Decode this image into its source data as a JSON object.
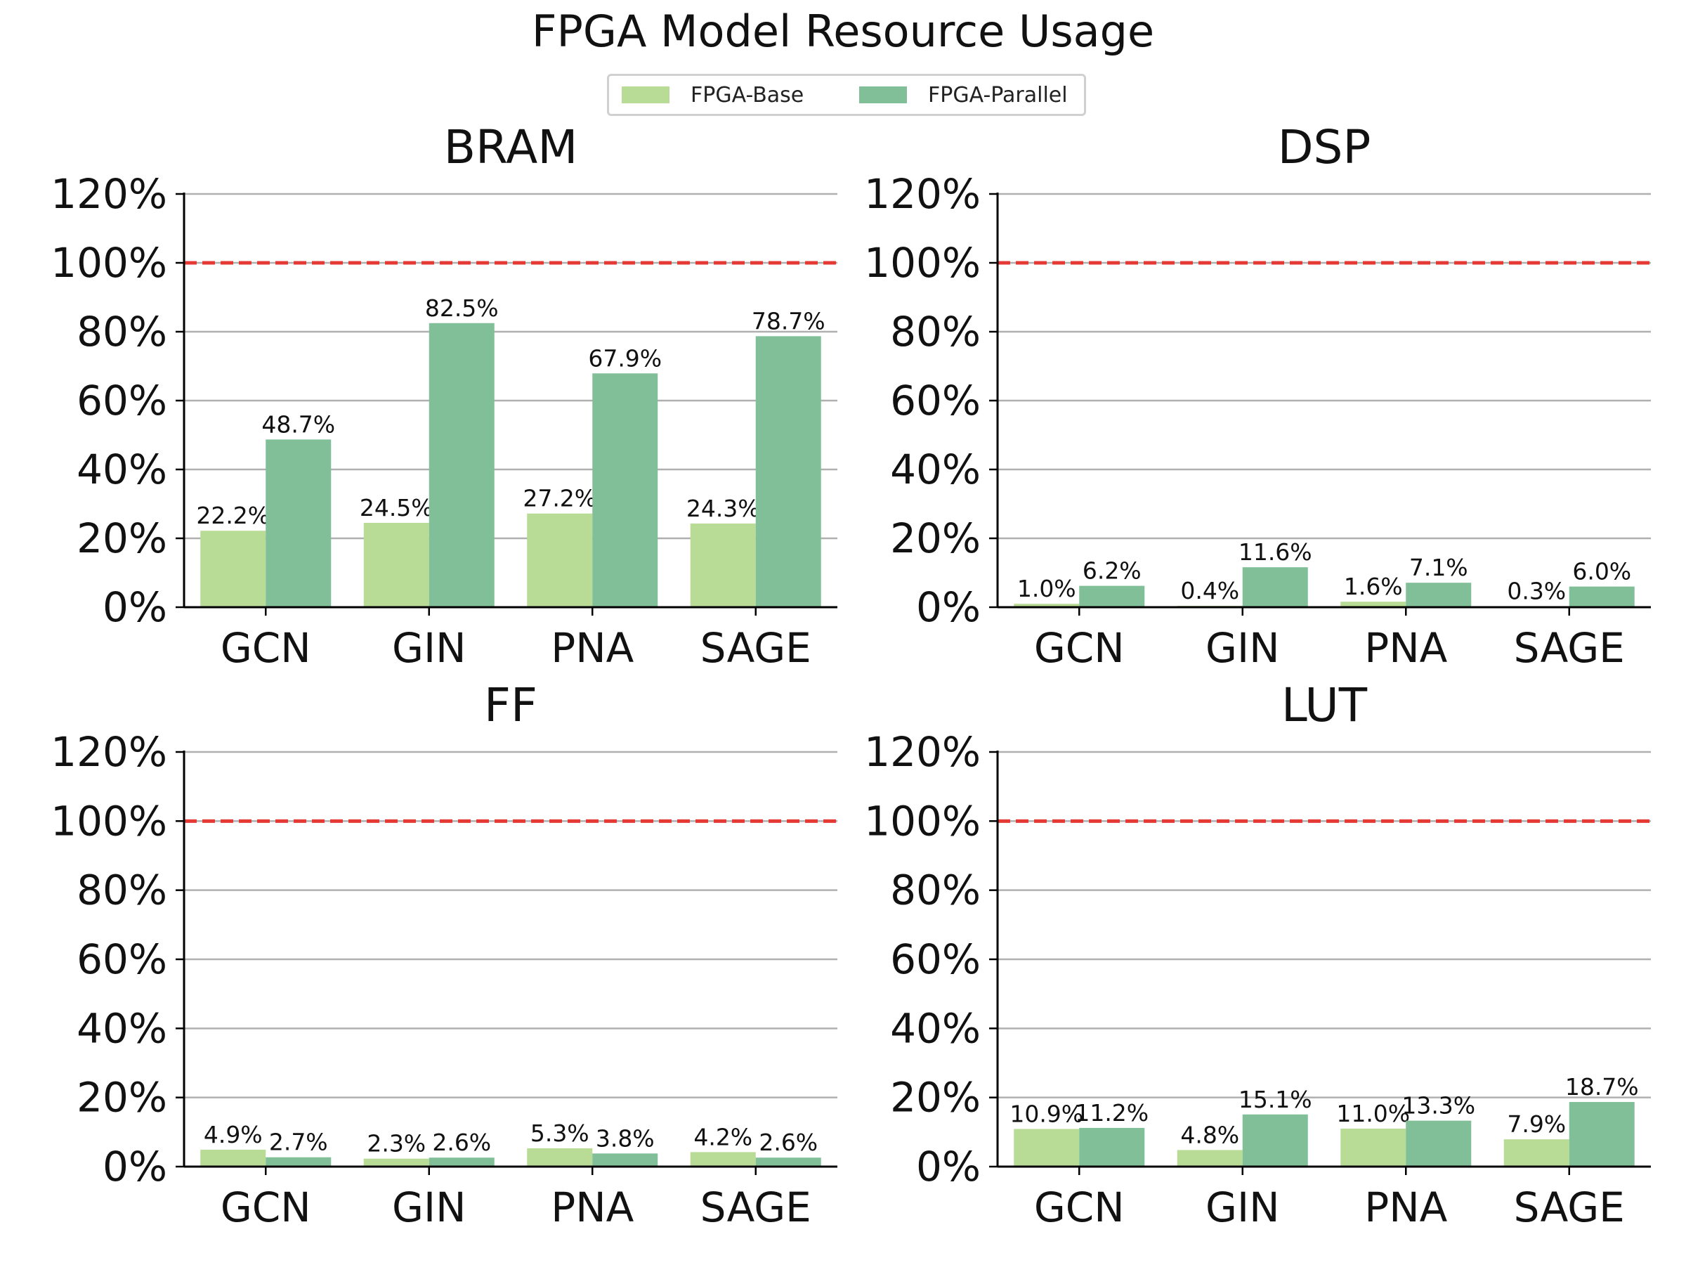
{
  "title": "FPGA Model Resource Usage",
  "legend": {
    "items": [
      {
        "label": "FPGA-Base",
        "color": "#b8db96"
      },
      {
        "label": "FPGA-Parallel",
        "color": "#80bf97"
      }
    ]
  },
  "reference_line": {
    "value": 100,
    "color": "#e53935",
    "style": "dashed"
  },
  "chart_data": [
    {
      "type": "bar",
      "title": "BRAM",
      "categories": [
        "GCN",
        "GIN",
        "PNA",
        "SAGE"
      ],
      "series": [
        {
          "name": "FPGA-Base",
          "values": [
            22.2,
            24.5,
            27.2,
            24.3
          ],
          "labels": [
            "22.2%",
            "24.5%",
            "27.2%",
            "24.3%"
          ]
        },
        {
          "name": "FPGA-Parallel",
          "values": [
            48.7,
            82.5,
            67.9,
            78.7
          ],
          "labels": [
            "48.7%",
            "82.5%",
            "67.9%",
            "78.7%"
          ]
        }
      ],
      "ylim": [
        0,
        120
      ],
      "yticks": [
        "0%",
        "20%",
        "40%",
        "60%",
        "80%",
        "100%",
        "120%"
      ],
      "grid": true
    },
    {
      "type": "bar",
      "title": "DSP",
      "categories": [
        "GCN",
        "GIN",
        "PNA",
        "SAGE"
      ],
      "series": [
        {
          "name": "FPGA-Base",
          "values": [
            1.0,
            0.4,
            1.6,
            0.3
          ],
          "labels": [
            "1.0%",
            "0.4%",
            "1.6%",
            "0.3%"
          ]
        },
        {
          "name": "FPGA-Parallel",
          "values": [
            6.2,
            11.6,
            7.1,
            6.0
          ],
          "labels": [
            "6.2%",
            "11.6%",
            "7.1%",
            "6.0%"
          ]
        }
      ],
      "ylim": [
        0,
        120
      ],
      "yticks": [
        "0%",
        "20%",
        "40%",
        "60%",
        "80%",
        "100%",
        "120%"
      ],
      "grid": true
    },
    {
      "type": "bar",
      "title": "FF",
      "categories": [
        "GCN",
        "GIN",
        "PNA",
        "SAGE"
      ],
      "series": [
        {
          "name": "FPGA-Base",
          "values": [
            4.9,
            2.3,
            5.3,
            4.2
          ],
          "labels": [
            "4.9%",
            "2.3%",
            "5.3%",
            "4.2%"
          ]
        },
        {
          "name": "FPGA-Parallel",
          "values": [
            2.7,
            2.6,
            3.8,
            2.6
          ],
          "labels": [
            "2.7%",
            "2.6%",
            "3.8%",
            "2.6%"
          ]
        }
      ],
      "ylim": [
        0,
        120
      ],
      "yticks": [
        "0%",
        "20%",
        "40%",
        "60%",
        "80%",
        "100%",
        "120%"
      ],
      "grid": true
    },
    {
      "type": "bar",
      "title": "LUT",
      "categories": [
        "GCN",
        "GIN",
        "PNA",
        "SAGE"
      ],
      "series": [
        {
          "name": "FPGA-Base",
          "values": [
            10.9,
            4.8,
            11.0,
            7.9
          ],
          "labels": [
            "10.9%",
            "4.8%",
            "11.0%",
            "7.9%"
          ]
        },
        {
          "name": "FPGA-Parallel",
          "values": [
            11.2,
            15.1,
            13.3,
            18.7
          ],
          "labels": [
            "11.2%",
            "15.1%",
            "13.3%",
            "18.7%"
          ]
        }
      ],
      "ylim": [
        0,
        120
      ],
      "yticks": [
        "0%",
        "20%",
        "40%",
        "60%",
        "80%",
        "100%",
        "120%"
      ],
      "grid": true
    }
  ]
}
